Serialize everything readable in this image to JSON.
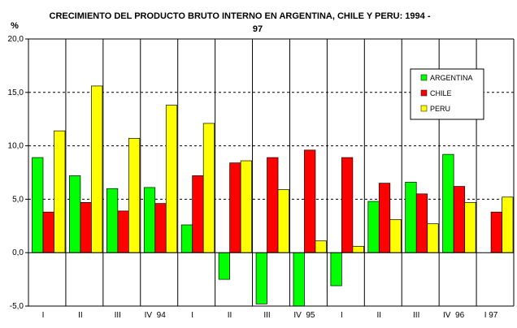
{
  "chart_data": {
    "type": "bar",
    "title_line1": "CRECIMIENTO DEL PRODUCTO BRUTO INTERNO EN ARGENTINA, CHILE Y PERU: 1994 -",
    "title_line2": "97",
    "ylabel": "%",
    "ylim": [
      -5,
      20
    ],
    "yticks": [
      "-5,0",
      "0,0",
      "5,0",
      "10,0",
      "15,0",
      "20,0"
    ],
    "ytick_values": [
      -5,
      0,
      5,
      10,
      15,
      20
    ],
    "grid_lines": [
      5,
      10,
      15
    ],
    "categories": [
      "I",
      "II",
      "III",
      "IV  94",
      "I",
      "II",
      "III",
      "IV  95",
      "I",
      "II",
      "III",
      "IV  96",
      "I 97"
    ],
    "legend_position": "top-right",
    "series": [
      {
        "name": "ARGENTINA",
        "color": "#00ff00",
        "values": [
          8.9,
          7.2,
          6.0,
          6.1,
          2.6,
          -2.5,
          -4.8,
          -5.0,
          -3.1,
          4.8,
          6.6,
          9.2,
          null
        ]
      },
      {
        "name": "CHILE",
        "color": "#ff0000",
        "values": [
          3.8,
          4.7,
          3.9,
          4.6,
          7.2,
          8.4,
          8.9,
          9.6,
          8.9,
          6.5,
          5.5,
          6.2,
          3.8
        ]
      },
      {
        "name": "PERU",
        "color": "#ffff00",
        "values": [
          11.4,
          15.6,
          10.7,
          13.8,
          12.1,
          8.6,
          5.9,
          1.1,
          0.6,
          3.1,
          2.7,
          4.7,
          5.2
        ]
      }
    ]
  }
}
